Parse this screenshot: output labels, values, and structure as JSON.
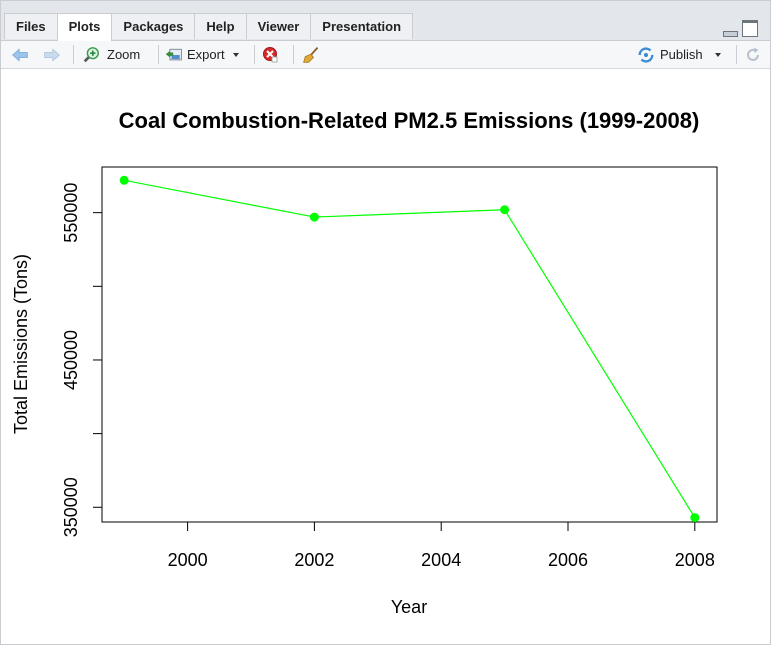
{
  "tabs": [
    {
      "label": "Files",
      "active": false
    },
    {
      "label": "Plots",
      "active": true
    },
    {
      "label": "Packages",
      "active": false
    },
    {
      "label": "Help",
      "active": false
    },
    {
      "label": "Viewer",
      "active": false
    },
    {
      "label": "Presentation",
      "active": false
    }
  ],
  "toolbar": {
    "zoom_label": "Zoom",
    "export_label": "Export",
    "publish_label": "Publish",
    "icons": [
      "back-arrow-icon",
      "forward-arrow-icon",
      "zoom-icon",
      "export-icon",
      "remove-plot-icon",
      "broom-icon",
      "publish-icon",
      "refresh-icon"
    ]
  },
  "colors": {
    "series": "#00ff00",
    "accent": "#3a8bd8",
    "remove": "#cc2222"
  },
  "chart_data": {
    "type": "line",
    "title": "Coal Combustion-Related PM2.5 Emissions (1999-2008)",
    "xlabel": "Year",
    "ylabel": "Total Emissions (Tons)",
    "x": [
      1999,
      2002,
      2005,
      2008
    ],
    "y": [
      572000,
      547000,
      552000,
      343000
    ],
    "xlim": [
      1998.65,
      2008.35
    ],
    "ylim": [
      340000,
      581000
    ],
    "xticks": [
      "2000",
      "2002",
      "2004",
      "2006",
      "2008"
    ],
    "yticks": [
      "350000",
      "450000",
      "550000"
    ],
    "ytick_values": [
      350000,
      400000,
      450000,
      500000,
      550000
    ],
    "grid": false,
    "markers": true
  }
}
